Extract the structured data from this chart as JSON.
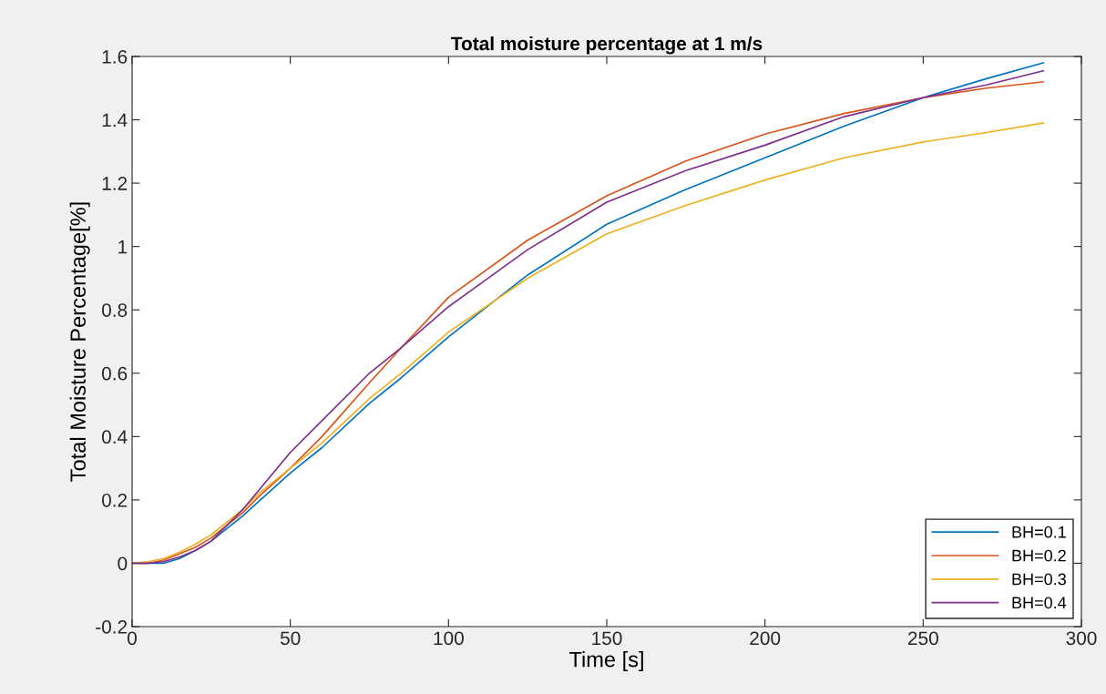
{
  "chart_data": {
    "type": "line",
    "title": "Total moisture percentage at 1 m/s",
    "xlabel": "Time [s]",
    "ylabel": "Total Moisture Percentage[%]",
    "x": [
      0,
      5,
      10,
      15,
      20,
      25,
      30,
      35,
      40,
      50,
      60,
      75,
      85,
      100,
      125,
      150,
      175,
      200,
      225,
      250,
      270,
      288
    ],
    "series": [
      {
        "name": "BH=0.1",
        "color": "#0072bd",
        "values": [
          0,
          0.0,
          0.0,
          0.015,
          0.04,
          0.07,
          0.11,
          0.15,
          0.195,
          0.285,
          0.365,
          0.505,
          0.585,
          0.715,
          0.91,
          1.07,
          1.18,
          1.28,
          1.38,
          1.47,
          1.53,
          1.58
        ]
      },
      {
        "name": "BH=0.2",
        "color": "#d95319",
        "values": [
          0,
          0.0,
          0.01,
          0.03,
          0.05,
          0.08,
          0.12,
          0.16,
          0.21,
          0.3,
          0.4,
          0.57,
          0.68,
          0.84,
          1.02,
          1.16,
          1.27,
          1.355,
          1.42,
          1.47,
          1.5,
          1.52
        ]
      },
      {
        "name": "BH=0.3",
        "color": "#edb120",
        "values": [
          0,
          0.005,
          0.015,
          0.035,
          0.06,
          0.09,
          0.13,
          0.17,
          0.22,
          0.3,
          0.38,
          0.52,
          0.6,
          0.73,
          0.9,
          1.04,
          1.13,
          1.21,
          1.28,
          1.33,
          1.36,
          1.39
        ]
      },
      {
        "name": "BH=0.4",
        "color": "#7e2f8e",
        "values": [
          0,
          0.0,
          0.005,
          0.02,
          0.04,
          0.07,
          0.12,
          0.17,
          0.23,
          0.35,
          0.45,
          0.6,
          0.68,
          0.81,
          0.99,
          1.14,
          1.24,
          1.32,
          1.41,
          1.47,
          1.51,
          1.555
        ]
      }
    ],
    "xlim": [
      0,
      300
    ],
    "xticks": [
      0,
      50,
      100,
      150,
      200,
      250,
      300
    ],
    "ylim": [
      -0.2,
      1.6
    ],
    "yticks": [
      -0.2,
      0,
      0.2,
      0.4,
      0.6,
      0.8,
      1,
      1.2,
      1.4,
      1.6
    ],
    "legend": "lower right",
    "grid": false
  }
}
